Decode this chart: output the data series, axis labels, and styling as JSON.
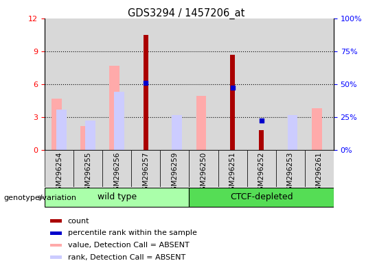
{
  "title": "GDS3294 / 1457206_at",
  "samples": [
    "GSM296254",
    "GSM296255",
    "GSM296256",
    "GSM296257",
    "GSM296259",
    "GSM296250",
    "GSM296251",
    "GSM296252",
    "GSM296253",
    "GSM296261"
  ],
  "count": [
    null,
    null,
    null,
    10.5,
    null,
    null,
    8.7,
    1.8,
    null,
    null
  ],
  "percentile_rank": [
    null,
    null,
    null,
    6.1,
    null,
    null,
    5.7,
    2.7,
    null,
    null
  ],
  "value_absent": [
    4.7,
    2.2,
    7.7,
    null,
    null,
    4.9,
    null,
    null,
    null,
    3.8
  ],
  "rank_absent": [
    3.7,
    2.7,
    5.3,
    null,
    3.2,
    null,
    null,
    null,
    3.2,
    null
  ],
  "ylim_left": [
    0,
    12
  ],
  "ylim_right": [
    0,
    100
  ],
  "yticks_left": [
    0,
    3,
    6,
    9,
    12
  ],
  "yticks_right": [
    0,
    25,
    50,
    75,
    100
  ],
  "color_count": "#aa0000",
  "color_percentile": "#0000cc",
  "color_value_absent": "#ffaaaa",
  "color_rank_absent": "#ccccff",
  "group_bg": "#d8d8d8",
  "wt_color": "#aaffaa",
  "ctcf_color": "#55dd55",
  "wt_range": [
    0,
    4
  ],
  "ctcf_range": [
    5,
    9
  ],
  "legend_items": [
    {
      "label": "count",
      "color": "#aa0000"
    },
    {
      "label": "percentile rank within the sample",
      "color": "#0000cc"
    },
    {
      "label": "value, Detection Call = ABSENT",
      "color": "#ffaaaa"
    },
    {
      "label": "rank, Detection Call = ABSENT",
      "color": "#ccccff"
    }
  ]
}
